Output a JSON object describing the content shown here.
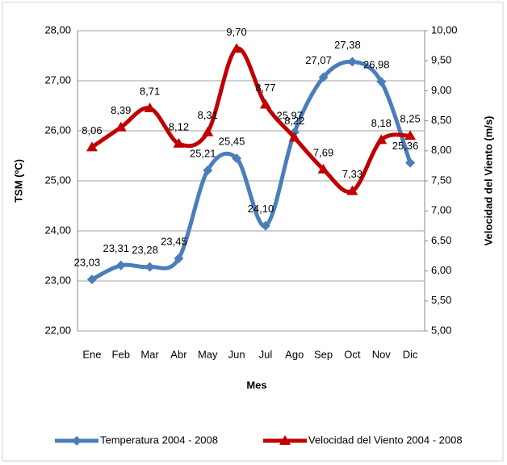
{
  "chart_data": {
    "type": "line",
    "xlabel": "Mes",
    "ylabel": "TSM (ºC)",
    "y2label": "Velocidad del Viento (m/s)",
    "categories": [
      "Ene",
      "Feb",
      "Mar",
      "Abr",
      "May",
      "Jun",
      "Jul",
      "Ago",
      "Sep",
      "Oct",
      "Nov",
      "Dic"
    ],
    "series": [
      {
        "name": "Temperatura 2004 - 2008",
        "color": "#4a7ebb",
        "axis": "y",
        "values": [
          23.03,
          23.31,
          23.28,
          23.45,
          25.21,
          25.45,
          24.1,
          25.97,
          27.07,
          27.38,
          26.98,
          25.36
        ],
        "value_labels": [
          "23,03",
          "23,31",
          "23,28",
          "23,45",
          "25,21",
          "25,45",
          "24,10",
          "25,97",
          "27,07",
          "27,38",
          "26,98",
          "25,36"
        ]
      },
      {
        "name": "Velocidad del Viento 2004 - 2008",
        "color": "#c00000",
        "axis": "y2",
        "values": [
          8.06,
          8.39,
          8.71,
          8.12,
          8.31,
          9.7,
          8.77,
          8.22,
          7.69,
          7.33,
          8.18,
          8.25
        ],
        "value_labels": [
          "8,06",
          "8,39",
          "8,71",
          "8,12",
          "8,31",
          "9,70",
          "8,77",
          "8,22",
          "7,69",
          "7,33",
          "8,18",
          "8,25"
        ]
      }
    ],
    "ylim": [
      22,
      28
    ],
    "yticks": [
      {
        "value": 22,
        "label": "22,00"
      },
      {
        "value": 23,
        "label": "23,00"
      },
      {
        "value": 24,
        "label": "24,00"
      },
      {
        "value": 25,
        "label": "25,00"
      },
      {
        "value": 26,
        "label": "26,00"
      },
      {
        "value": 27,
        "label": "27,00"
      },
      {
        "value": 28,
        "label": "28,00"
      }
    ],
    "y2lim": [
      5,
      10
    ],
    "y2ticks": [
      {
        "value": 5,
        "label": "5,00"
      },
      {
        "value": 5.5,
        "label": "5,50"
      },
      {
        "value": 6,
        "label": "6,00"
      },
      {
        "value": 6.5,
        "label": "6,50"
      },
      {
        "value": 7,
        "label": "7,00"
      },
      {
        "value": 7.5,
        "label": "7,50"
      },
      {
        "value": 8,
        "label": "8,00"
      },
      {
        "value": 8.5,
        "label": "8,50"
      },
      {
        "value": 9,
        "label": "9,00"
      },
      {
        "value": 9.5,
        "label": "9,50"
      },
      {
        "value": 10,
        "label": "10,00"
      }
    ],
    "grid": true,
    "legend": "bottom"
  }
}
